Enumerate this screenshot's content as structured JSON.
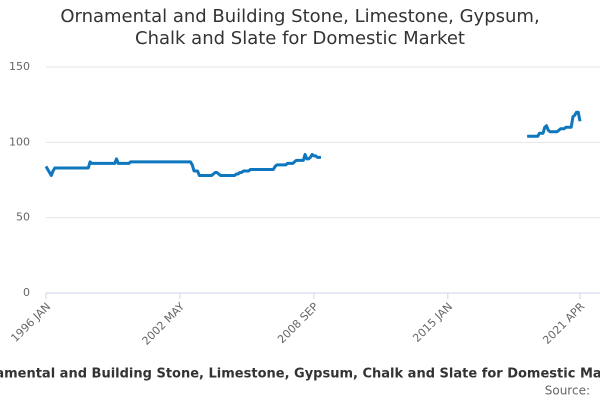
{
  "chart_data": {
    "type": "line",
    "title": "Ornamental and Building Stone, Limestone, Gypsum, Chalk and Slate for Domestic Market",
    "source": "Source:",
    "categories": [
      "1996 JAN",
      null,
      null,
      null,
      null,
      null,
      null,
      null,
      null,
      null,
      null,
      null,
      null,
      null,
      null,
      null,
      null,
      null,
      null,
      null,
      null,
      null,
      null,
      null,
      null,
      null,
      null,
      null,
      null,
      null,
      null,
      null,
      null,
      null,
      null,
      null,
      null,
      null,
      null,
      null,
      null,
      null,
      null,
      null,
      null,
      null,
      null,
      null,
      null,
      null,
      null,
      null,
      null,
      null,
      null,
      null,
      null,
      null,
      null,
      null,
      null,
      null,
      null,
      null,
      null,
      null,
      null,
      null,
      null,
      null,
      null,
      null,
      null,
      null,
      null,
      null,
      "2002 MAY",
      null,
      null,
      null,
      null,
      null,
      null,
      null,
      null,
      null,
      null,
      null,
      null,
      null,
      null,
      null,
      null,
      null,
      null,
      null,
      null,
      null,
      null,
      null,
      null,
      null,
      null,
      null,
      null,
      null,
      null,
      null,
      null,
      null,
      null,
      null,
      null,
      null,
      null,
      null,
      null,
      null,
      null,
      null,
      null,
      null,
      null,
      null,
      null,
      null,
      null,
      null,
      null,
      null,
      null,
      null,
      null,
      null,
      null,
      null,
      null,
      null,
      null,
      null,
      null,
      null,
      null,
      null,
      null,
      null,
      null,
      null,
      null,
      null,
      null,
      null,
      "2008 SEP",
      null,
      null,
      null,
      null,
      null,
      null,
      null,
      null,
      null,
      null,
      null,
      null,
      null,
      null,
      null,
      null,
      null,
      null,
      null,
      null,
      null,
      null,
      null,
      null,
      null,
      null,
      null,
      null,
      null,
      null,
      null,
      null,
      null,
      null,
      null,
      null,
      null,
      null,
      null,
      null,
      null,
      null,
      null,
      null,
      null,
      null,
      null,
      null,
      null,
      null,
      null,
      null,
      null,
      null,
      null,
      null,
      null,
      null,
      null,
      null,
      null,
      null,
      null,
      null,
      null,
      null,
      null,
      null,
      null,
      null,
      null,
      null,
      null,
      null,
      null,
      "2015 JAN",
      null,
      null,
      null,
      null,
      null,
      null,
      null,
      null,
      null,
      null,
      null,
      null,
      null,
      null,
      null,
      null,
      null,
      null,
      null,
      null,
      null,
      null,
      null,
      null,
      null,
      null,
      null,
      null,
      null,
      null,
      null,
      null,
      null,
      null,
      null,
      null,
      null,
      null,
      null,
      null,
      null,
      null,
      null,
      null,
      null,
      null,
      null,
      null,
      null,
      null,
      null,
      null,
      null,
      null,
      null,
      null,
      null,
      null,
      null,
      null,
      null,
      null,
      null,
      null,
      null,
      null,
      null,
      null,
      null,
      null,
      null,
      null,
      null,
      null,
      "2021 APR"
    ],
    "series": [
      {
        "name": "Ornamental and Building Stone, Limestone, Gypsum, Chalk and Slate for Domestic Market",
        "color": "#0e77bd",
        "values": [
          84,
          82,
          80,
          78,
          81,
          83,
          83,
          83,
          83,
          83,
          83,
          83,
          83,
          83,
          83,
          83,
          83,
          83,
          83,
          83,
          83,
          83,
          83,
          83,
          83,
          87,
          86,
          86,
          86,
          86,
          86,
          86,
          86,
          86,
          86,
          86,
          86,
          86,
          86,
          86,
          89,
          86,
          86,
          86,
          86,
          86,
          86,
          86,
          87,
          87,
          87,
          87,
          87,
          87,
          87,
          87,
          87,
          87,
          87,
          87,
          87,
          87,
          87,
          87,
          87,
          87,
          87,
          87,
          87,
          87,
          87,
          87,
          87,
          87,
          87,
          87,
          87,
          87,
          87,
          87,
          87,
          87,
          87,
          85,
          81,
          81,
          81,
          78,
          78,
          78,
          78,
          78,
          78,
          78,
          78,
          79,
          80,
          80,
          79,
          78,
          78,
          78,
          78,
          78,
          78,
          78,
          78,
          78,
          79,
          79,
          80,
          80,
          81,
          81,
          81,
          81,
          82,
          82,
          82,
          82,
          82,
          82,
          82,
          82,
          82,
          82,
          82,
          82,
          82,
          82,
          84,
          85,
          85,
          85,
          85,
          85,
          85,
          86,
          86,
          86,
          86,
          87,
          88,
          88,
          88,
          88,
          88,
          92,
          89,
          89,
          90,
          92,
          91,
          91,
          90,
          90,
          90,
          null,
          null,
          null,
          null,
          null,
          null,
          null,
          null,
          null,
          null,
          null,
          null,
          null,
          null,
          null,
          null,
          null,
          null,
          null,
          null,
          null,
          null,
          null,
          null,
          null,
          null,
          null,
          null,
          null,
          null,
          null,
          null,
          null,
          null,
          null,
          null,
          null,
          null,
          null,
          null,
          null,
          null,
          null,
          null,
          null,
          null,
          null,
          null,
          null,
          null,
          null,
          null,
          null,
          null,
          null,
          null,
          null,
          null,
          null,
          null,
          null,
          null,
          null,
          null,
          null,
          null,
          null,
          null,
          null,
          null,
          null,
          null,
          null,
          null,
          null,
          null,
          null,
          null,
          null,
          null,
          null,
          null,
          null,
          null,
          null,
          null,
          null,
          null,
          null,
          null,
          null,
          null,
          null,
          null,
          null,
          null,
          null,
          null,
          null,
          null,
          null,
          null,
          null,
          null,
          null,
          null,
          null,
          null,
          null,
          null,
          null,
          null,
          null,
          null,
          null,
          null,
          104,
          104,
          104,
          104,
          104,
          104,
          104,
          106,
          106,
          106,
          110,
          111,
          108,
          107,
          107,
          107,
          107,
          107,
          108,
          109,
          109,
          109,
          110,
          110,
          110,
          110,
          117,
          118,
          120,
          120,
          114
        ]
      }
    ],
    "ylim": [
      0,
      150
    ],
    "yticks": [
      0,
      50,
      100,
      150
    ],
    "grid": true
  }
}
